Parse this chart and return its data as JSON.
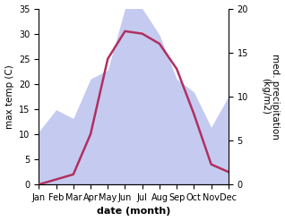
{
  "months": [
    "Jan",
    "Feb",
    "Mar",
    "Apr",
    "May",
    "Jun",
    "Jul",
    "Aug",
    "Sep",
    "Oct",
    "Nov",
    "Dec"
  ],
  "temperature": [
    0,
    1,
    2,
    10,
    25,
    30.5,
    30,
    28,
    23,
    14,
    4,
    2.5
  ],
  "precipitation": [
    6,
    8.5,
    7.5,
    12,
    13,
    20,
    20,
    17,
    12,
    10.5,
    6.5,
    10
  ],
  "temp_color": "#b03060",
  "precip_fill_color": "#c5caf0",
  "temp_ylim": [
    0,
    35
  ],
  "precip_ylim": [
    0,
    20
  ],
  "temp_yticks": [
    0,
    5,
    10,
    15,
    20,
    25,
    30,
    35
  ],
  "precip_yticks": [
    0,
    5,
    10,
    15,
    20
  ],
  "xlabel": "date (month)",
  "ylabel_left": "max temp (C)",
  "ylabel_right": "med. precipitation\n(kg/m2)",
  "xlabel_fontsize": 8,
  "ylabel_fontsize": 7.5,
  "tick_fontsize": 7,
  "line_width": 1.8,
  "background_color": "#ffffff"
}
